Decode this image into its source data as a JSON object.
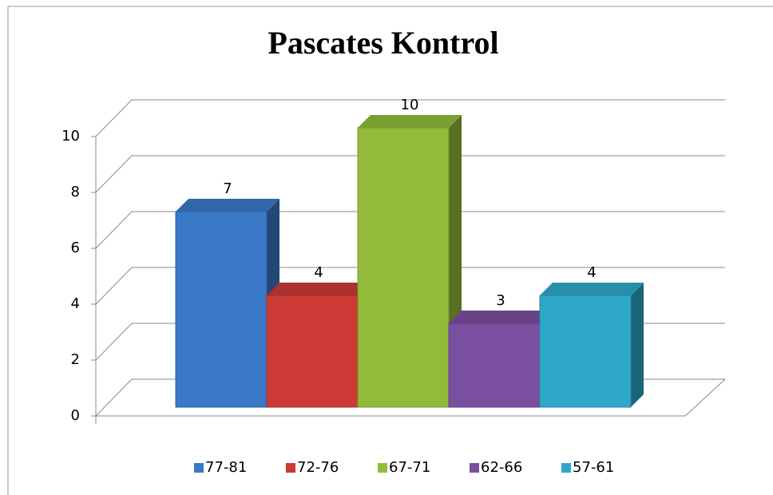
{
  "chart_data": {
    "type": "bar3d",
    "title": "Pascates Kontrol",
    "series": [
      {
        "name": "77-81",
        "color": "#3a78c8",
        "values": [
          7
        ]
      },
      {
        "name": "72-76",
        "color": "#cc3a35",
        "values": [
          4
        ]
      },
      {
        "name": "67-71",
        "color": "#92bb3a",
        "values": [
          10
        ]
      },
      {
        "name": "62-66",
        "color": "#7a4fa0",
        "values": [
          3
        ]
      },
      {
        "name": "57-61",
        "color": "#2ea8c8",
        "values": [
          4
        ]
      }
    ],
    "ylim": [
      0,
      10
    ],
    "yticks": [
      0,
      2,
      4,
      6,
      8,
      10
    ],
    "grid": true,
    "legend": "bottom"
  }
}
